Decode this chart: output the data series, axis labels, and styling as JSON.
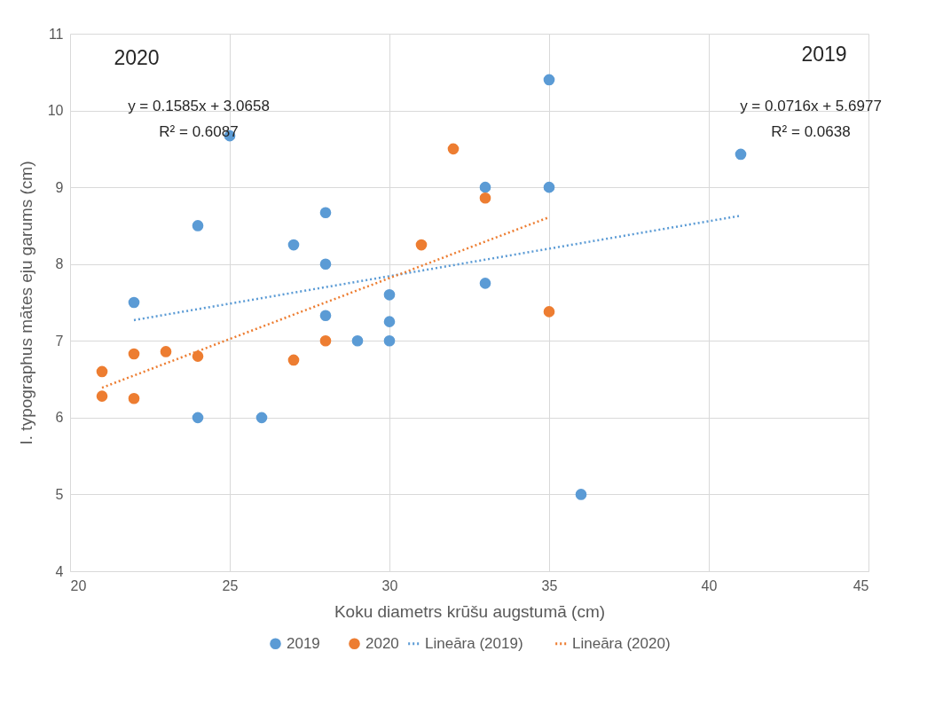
{
  "chart_data": {
    "type": "scatter",
    "xlabel": "Koku diametrs krūšu augstumā (cm)",
    "ylabel": "I. typographus mātes eju garums (cm)",
    "xlim": [
      20,
      45
    ],
    "xticks": [
      20,
      25,
      30,
      35,
      40,
      45
    ],
    "ylim": [
      4,
      11
    ],
    "yticks": [
      4,
      5,
      6,
      7,
      8,
      9,
      10,
      11
    ],
    "grid": true,
    "legend": "bottom",
    "series": [
      {
        "name": "2019",
        "marker": "circle",
        "color": "#5b9bd5",
        "x": [
          22,
          24,
          24,
          25,
          26,
          27,
          28,
          28,
          28,
          29,
          30,
          30,
          30,
          33,
          33,
          35,
          35,
          36,
          41
        ],
        "values": [
          7.5,
          8.5,
          6,
          9.67,
          6,
          8.25,
          8.67,
          8,
          7.33,
          7,
          7.6,
          7.25,
          7,
          9,
          7.75,
          10.4,
          9,
          5,
          9.43
        ]
      },
      {
        "name": "2020",
        "marker": "circle",
        "color": "#ed7d31",
        "x": [
          21,
          21,
          22,
          22,
          23,
          24,
          27,
          28,
          31,
          32,
          33,
          35
        ],
        "values": [
          6.6,
          6.28,
          6.83,
          6.25,
          6.86,
          6.8,
          6.75,
          7,
          8.25,
          9.5,
          8.86,
          7.38
        ]
      },
      {
        "name": "Lineāra (2019)",
        "type": "line",
        "line_style": "dotted",
        "marker": "none",
        "color": "#5b9bd5",
        "x": [
          22,
          41
        ],
        "values": [
          7.27,
          8.63
        ]
      },
      {
        "name": "Lineāra (2020)",
        "type": "line",
        "line_style": "dotted",
        "marker": "none",
        "color": "#ed7d31",
        "x": [
          21,
          35
        ],
        "values": [
          6.39,
          8.61
        ]
      }
    ],
    "annotations": [
      "2020",
      "y = 0.1585x + 3.0658",
      "R² = 0.6087",
      "2019",
      "y = 0.0716x + 5.6977",
      "R² = 0.0638"
    ]
  }
}
